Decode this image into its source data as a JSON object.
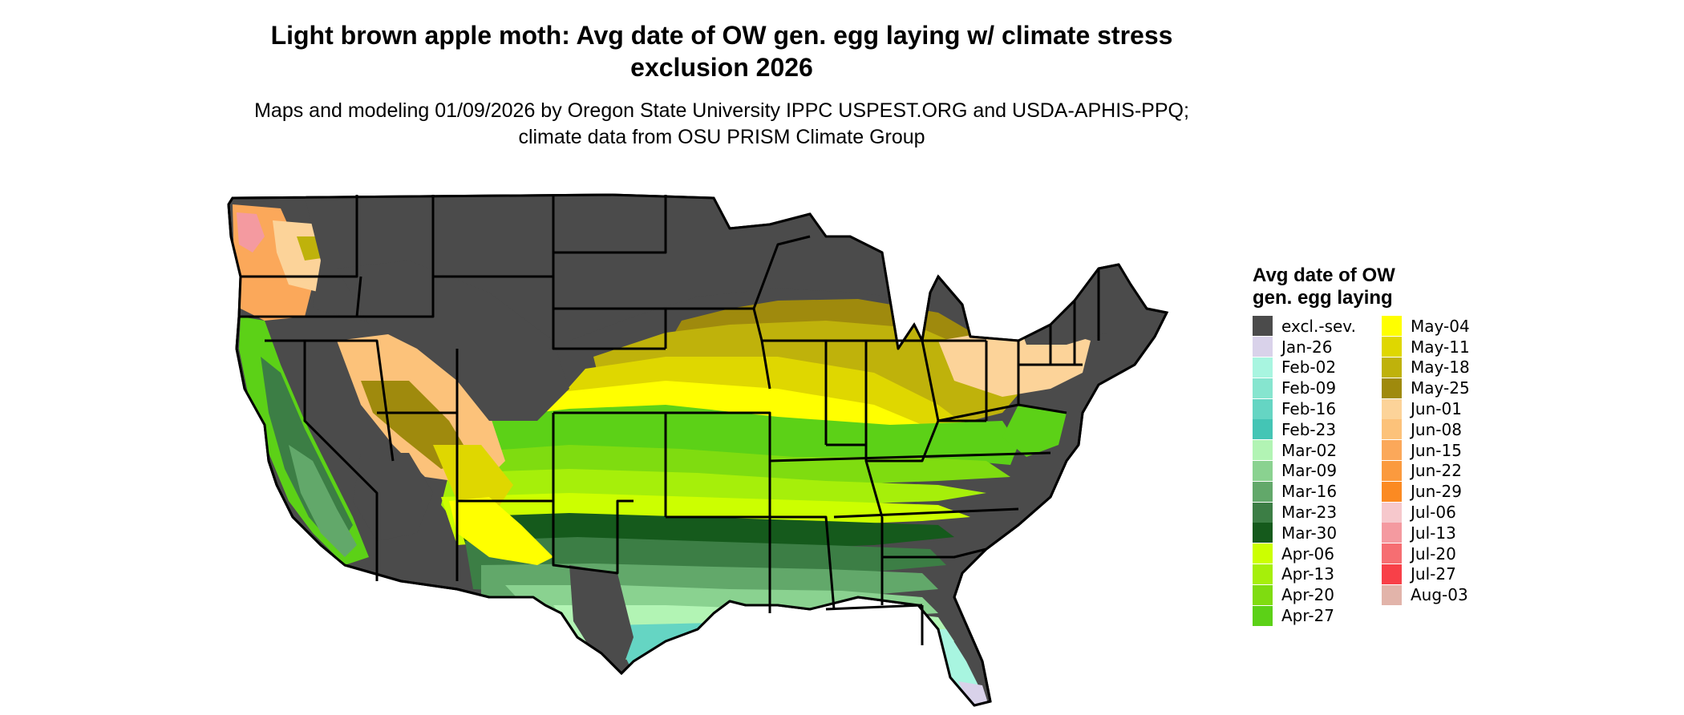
{
  "title": "Light brown apple moth: Avg date of OW gen. egg laying w/ climate stress exclusion 2026",
  "subtitle": "Maps and modeling 01/09/2026 by Oregon State University IPPC USPEST.ORG and USDA-APHIS-PPQ; climate data from OSU PRISM Climate Group",
  "map": {
    "region": "Contiguous United States",
    "border_color": "#000000",
    "excluded_color": "#4b4b4b"
  },
  "legend": {
    "title_line1": "Avg date of OW",
    "title_line2": "gen. egg laying",
    "columns": [
      [
        {
          "label": "excl.-sev.",
          "color": "#4b4b4b"
        },
        {
          "label": "Jan-26",
          "color": "#d9d2ea"
        },
        {
          "label": "Feb-02",
          "color": "#a8f5e0"
        },
        {
          "label": "Feb-09",
          "color": "#86e5cf"
        },
        {
          "label": "Feb-16",
          "color": "#65d5c3"
        },
        {
          "label": "Feb-23",
          "color": "#44c5b5"
        },
        {
          "label": "Mar-02",
          "color": "#b2f4b4"
        },
        {
          "label": "Mar-09",
          "color": "#8ad290"
        },
        {
          "label": "Mar-16",
          "color": "#62a86a"
        },
        {
          "label": "Mar-23",
          "color": "#3c7e45"
        },
        {
          "label": "Mar-30",
          "color": "#155a1c"
        },
        {
          "label": "Apr-06",
          "color": "#ccff00"
        },
        {
          "label": "Apr-13",
          "color": "#a6ef0a"
        },
        {
          "label": "Apr-20",
          "color": "#7fdc10"
        },
        {
          "label": "Apr-27",
          "color": "#5cd117"
        }
      ],
      [
        {
          "label": "May-04",
          "color": "#ffff00"
        },
        {
          "label": "May-11",
          "color": "#dfd700"
        },
        {
          "label": "May-18",
          "color": "#bfb20b"
        },
        {
          "label": "May-25",
          "color": "#9f8a0d"
        },
        {
          "label": "Jun-01",
          "color": "#fcd399"
        },
        {
          "label": "Jun-08",
          "color": "#fcc27a"
        },
        {
          "label": "Jun-15",
          "color": "#fba85a"
        },
        {
          "label": "Jun-22",
          "color": "#fb9a3e"
        },
        {
          "label": "Jun-29",
          "color": "#fb8a22"
        },
        {
          "label": "Jul-06",
          "color": "#f6c8cc"
        },
        {
          "label": "Jul-13",
          "color": "#f49aa0"
        },
        {
          "label": "Jul-20",
          "color": "#f66e72"
        },
        {
          "label": "Jul-27",
          "color": "#f84048"
        },
        {
          "label": "Aug-03",
          "color": "#e2b4aa"
        }
      ]
    ]
  }
}
